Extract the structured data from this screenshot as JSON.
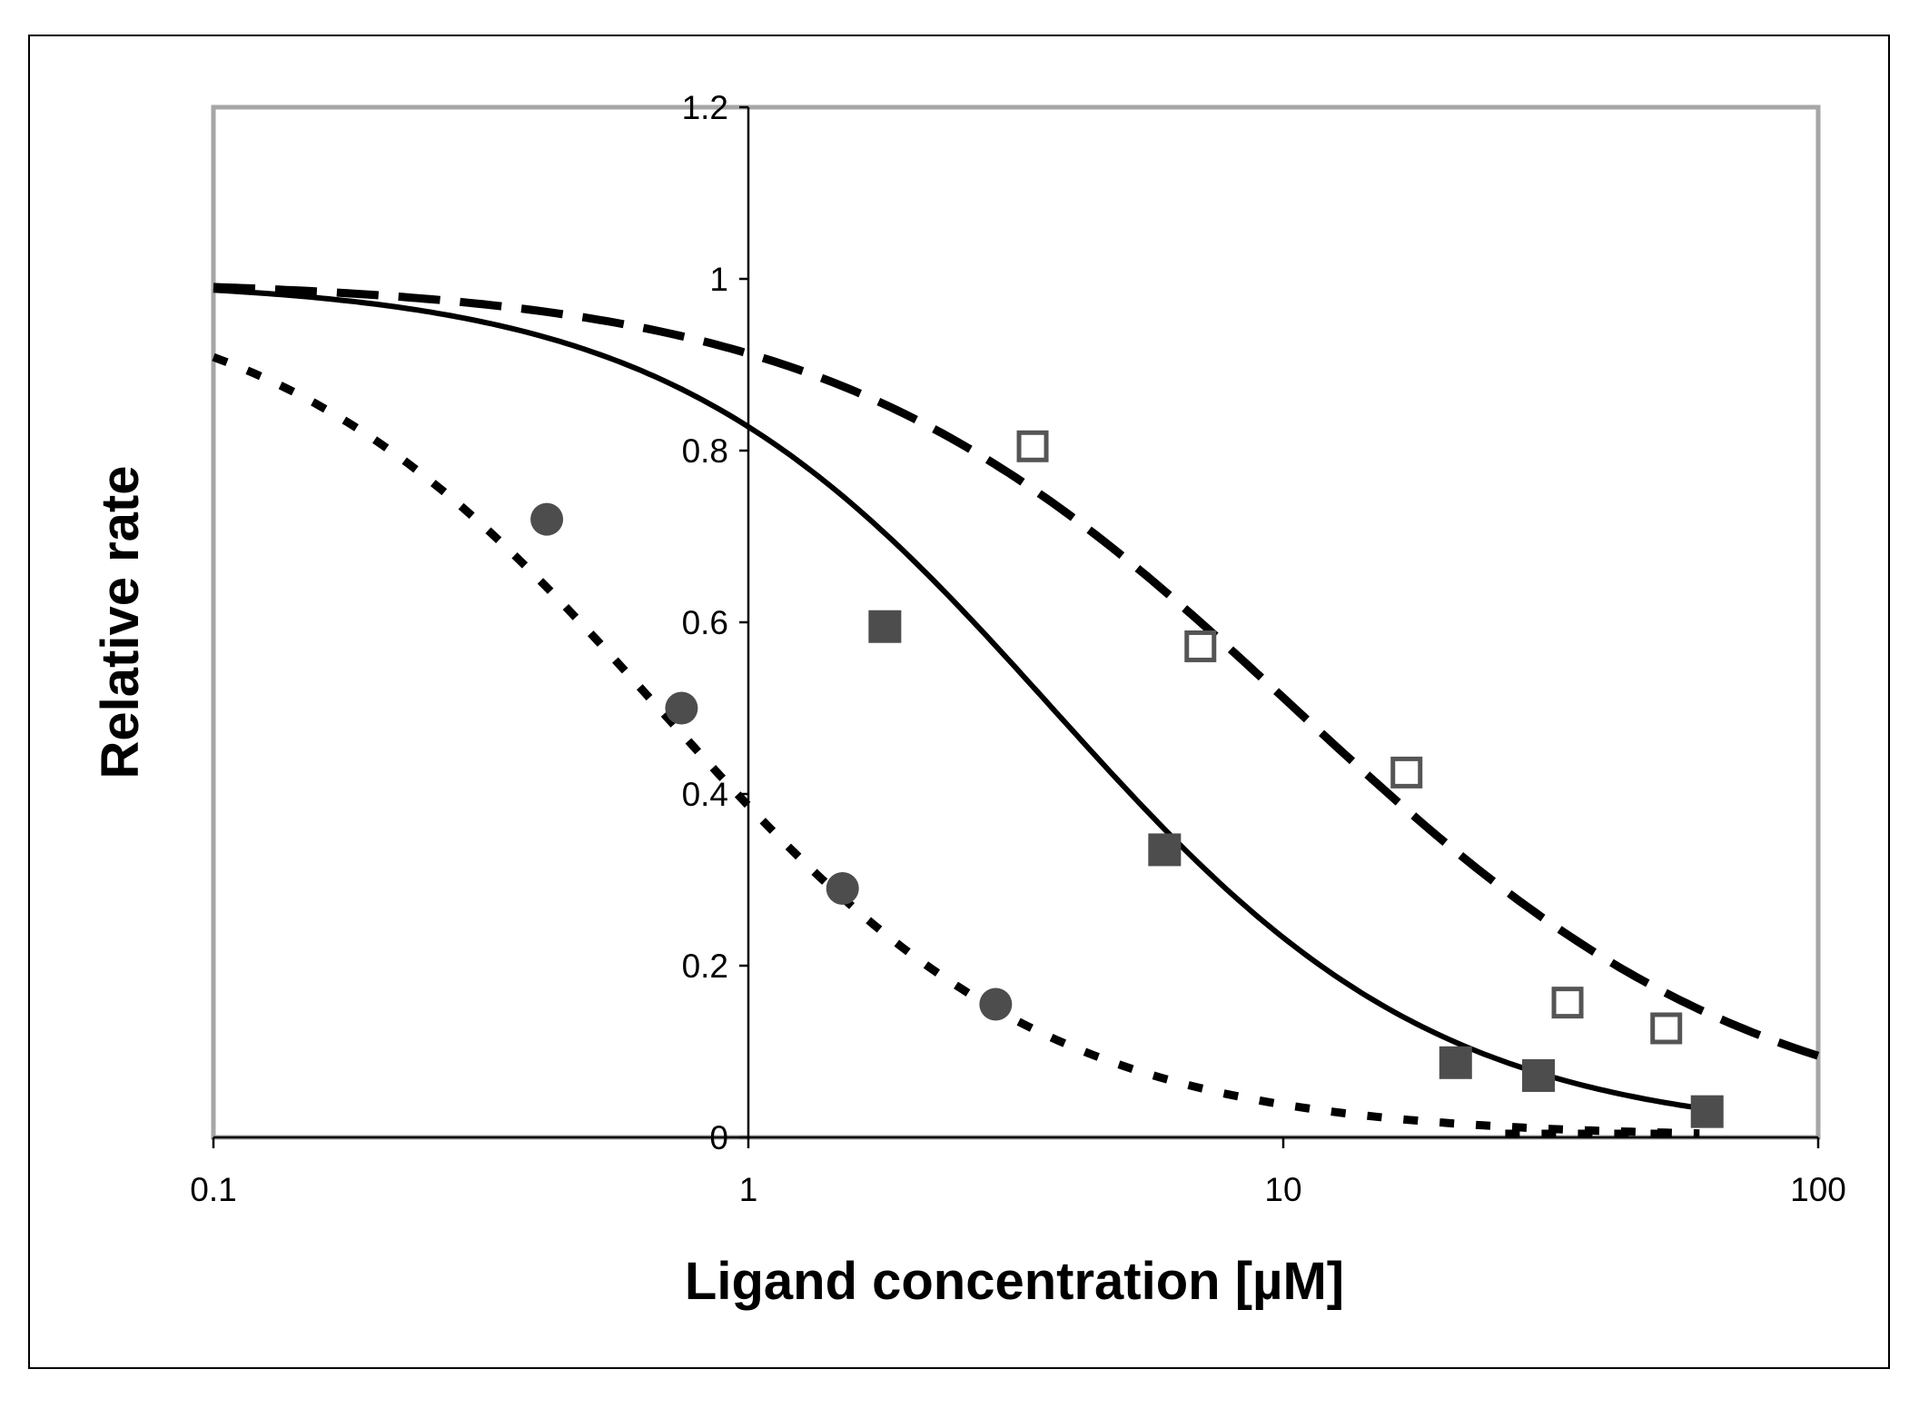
{
  "chart_data": {
    "type": "scatter",
    "title": "",
    "xlabel": "Ligand concentration [µM]",
    "ylabel": "Relative rate",
    "xscale": "log",
    "xlim": [
      0.1,
      100
    ],
    "ylim": [
      0,
      1.2
    ],
    "xticks": [
      0.1,
      1,
      10,
      100
    ],
    "xtick_labels": [
      "0.1",
      "1",
      "10",
      "100"
    ],
    "yticks": [
      0,
      0.2,
      0.4,
      0.6,
      0.8,
      1,
      1.2
    ],
    "ytick_labels": [
      "0",
      "0.2",
      "0.4",
      "0.6",
      "0.8",
      "1",
      "1.2"
    ],
    "grid": false,
    "legend": "none",
    "series": [
      {
        "name": "filled circles",
        "marker": "circle",
        "color": "#4d4d4d",
        "x": [
          0.42,
          0.75,
          1.5,
          2.9
        ],
        "y": [
          0.72,
          0.5,
          0.29,
          0.155
        ]
      },
      {
        "name": "filled squares",
        "marker": "square-filled",
        "color": "#4d4d4d",
        "x": [
          1.8,
          6,
          21,
          30,
          62
        ],
        "y": [
          0.595,
          0.335,
          0.087,
          0.072,
          0.03
        ]
      },
      {
        "name": "open squares",
        "marker": "square-open",
        "color": "#555555",
        "x": [
          3.4,
          7,
          17,
          34,
          52
        ],
        "y": [
          0.805,
          0.572,
          0.425,
          0.157,
          0.127
        ]
      }
    ],
    "curves": [
      {
        "name": "dotted fit",
        "style": "dotted",
        "ic50": 0.68,
        "hill": 1.2,
        "xrange": [
          0.1,
          60
        ]
      },
      {
        "name": "solid fit",
        "style": "solid",
        "ic50": 3.7,
        "hill": 1.2,
        "xrange": [
          0.1,
          62
        ]
      },
      {
        "name": "dashed fit",
        "style": "dashed",
        "ic50": 10.5,
        "hill": 1.0,
        "xrange": [
          0.1,
          100
        ]
      }
    ],
    "extra_segment": {
      "name": "dotted baseline fragment",
      "style": "dotted",
      "x": [
        26,
        55
      ],
      "y": [
        0,
        0
      ]
    }
  }
}
